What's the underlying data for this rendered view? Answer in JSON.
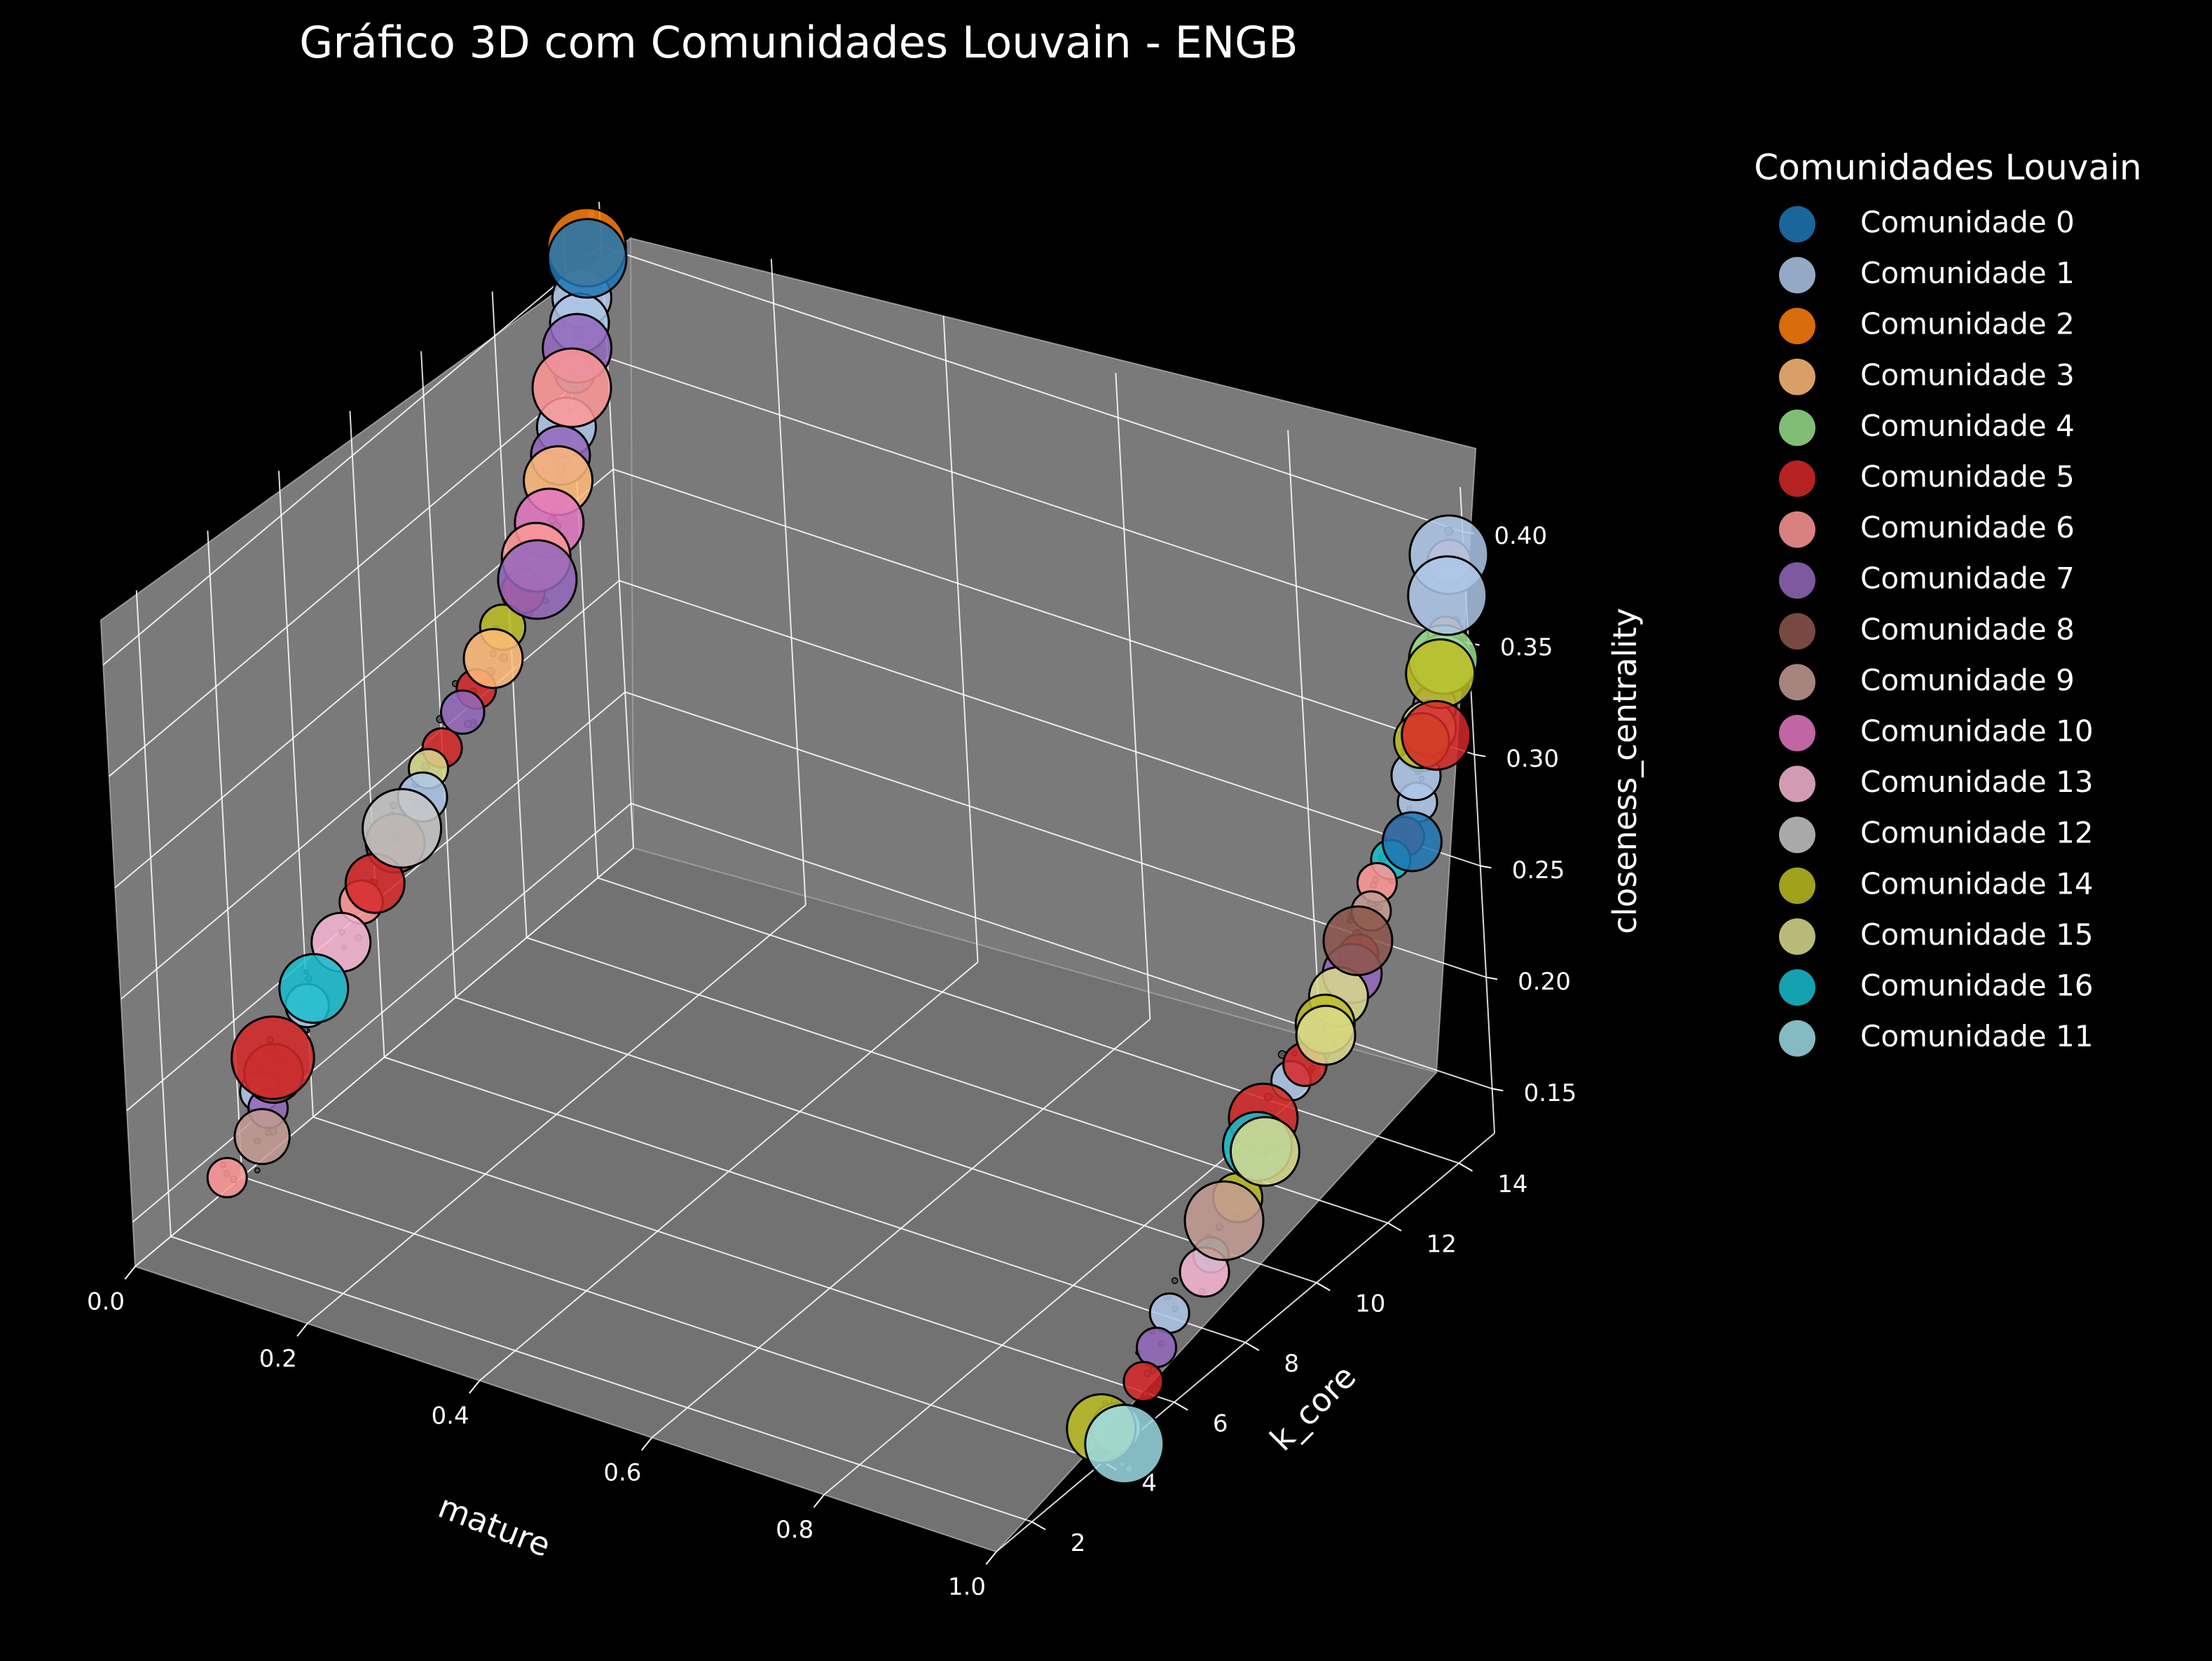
{
  "chart_data": {
    "type": "scatter",
    "projection": "3d",
    "title": "Gráfico 3D com Comunidades Louvain - ENGB",
    "xlabel": "mature",
    "ylabel": "k_core",
    "zlabel": "closeness_centrality",
    "x_ticks": [
      "0.0",
      "0.2",
      "0.4",
      "0.6",
      "0.8",
      "1.0"
    ],
    "y_ticks": [
      "2",
      "4",
      "6",
      "8",
      "10",
      "12",
      "14"
    ],
    "z_ticks": [
      "0.15",
      "0.20",
      "0.25",
      "0.30",
      "0.35",
      "0.40"
    ],
    "xlim": [
      0,
      1
    ],
    "ylim": [
      1,
      15
    ],
    "zlim": [
      0.13,
      0.42
    ],
    "grid": true,
    "background": "#000000",
    "pane_color": "#777777",
    "legend_title": "Comunidades Louvain",
    "legend_placement": "outside-right",
    "legend": [
      {
        "label": "Comunidade 0",
        "color": "#1f77b4"
      },
      {
        "label": "Comunidade 1",
        "color": "#aec7e8"
      },
      {
        "label": "Comunidade 2",
        "color": "#ff7f0e"
      },
      {
        "label": "Comunidade 3",
        "color": "#ffbb78"
      },
      {
        "label": "Comunidade 4",
        "color": "#98df8a"
      },
      {
        "label": "Comunidade 5",
        "color": "#d62728"
      },
      {
        "label": "Comunidade 6",
        "color": "#ff9896"
      },
      {
        "label": "Comunidade 7",
        "color": "#9467bd"
      },
      {
        "label": "Comunidade 8",
        "color": "#8c564b"
      },
      {
        "label": "Comunidade 9",
        "color": "#c49c94"
      },
      {
        "label": "Comunidade 10",
        "color": "#e377c2"
      },
      {
        "label": "Comunidade 13",
        "color": "#f7b6d2"
      },
      {
        "label": "Comunidade 12",
        "color": "#c7c7c7"
      },
      {
        "label": "Comunidade 14",
        "color": "#bcbd22"
      },
      {
        "label": "Comunidade 15",
        "color": "#dbdb8d"
      },
      {
        "label": "Comunidade 16",
        "color": "#17becf"
      },
      {
        "label": "Comunidade 11",
        "color": "#9edae5"
      }
    ],
    "points": [
      {
        "x": 0,
        "y": 14.6,
        "z": 0.405,
        "c": "Comunidade 2",
        "s": 3
      },
      {
        "x": 0,
        "y": 14.6,
        "z": 0.4,
        "c": "Comunidade 0",
        "s": 3
      },
      {
        "x": 0,
        "y": 14.4,
        "z": 0.385,
        "c": "Comunidade 1",
        "s": 2
      },
      {
        "x": 0,
        "y": 14.3,
        "z": 0.375,
        "c": "Comunidade 1",
        "s": 2
      },
      {
        "x": 0,
        "y": 14.2,
        "z": 0.365,
        "c": "Comunidade 7",
        "s": 2.5
      },
      {
        "x": 0,
        "y": 14.1,
        "z": 0.355,
        "c": "Comunidade 0",
        "s": 1
      },
      {
        "x": 0,
        "y": 14.0,
        "z": 0.35,
        "c": "Comunidade 6",
        "s": 3
      },
      {
        "x": 0,
        "y": 13.8,
        "z": 0.335,
        "c": "Comunidade 1",
        "s": 2
      },
      {
        "x": 0,
        "y": 13.6,
        "z": 0.325,
        "c": "Comunidade 7",
        "s": 2
      },
      {
        "x": 0,
        "y": 13.5,
        "z": 0.315,
        "c": "Comunidade 3",
        "s": 2.5
      },
      {
        "x": 0,
        "y": 13.2,
        "z": 0.3,
        "c": "Comunidade 10",
        "s": 2.5
      },
      {
        "x": 0,
        "y": 12.8,
        "z": 0.29,
        "c": "Comunidade 6",
        "s": 2.5
      },
      {
        "x": 0,
        "y": 12.8,
        "z": 0.28,
        "c": "Comunidade 7",
        "s": 3
      },
      {
        "x": 0,
        "y": 12.4,
        "z": 0.28,
        "c": "Comunidade 5",
        "s": 1.2
      },
      {
        "x": 0,
        "y": 11.8,
        "z": 0.272,
        "c": "Comunidade 14",
        "s": 1.3
      },
      {
        "x": 0,
        "y": 11.5,
        "z": 0.262,
        "c": "Comunidade 3",
        "s": 2
      },
      {
        "x": 0,
        "y": 11.0,
        "z": 0.255,
        "c": "Comunidade 5",
        "s": 1
      },
      {
        "x": 0,
        "y": 10.6,
        "z": 0.25,
        "c": "Comunidade 7",
        "s": 1.2
      },
      {
        "x": 0,
        "y": 10.0,
        "z": 0.242,
        "c": "Comunidade 5",
        "s": 1
      },
      {
        "x": 0,
        "y": 9.6,
        "z": 0.238,
        "c": "Comunidade 15",
        "s": 1
      },
      {
        "x": 0,
        "y": 9.4,
        "z": 0.228,
        "c": "Comunidade 1",
        "s": 1.5
      },
      {
        "x": 0,
        "y": 8.8,
        "z": 0.222,
        "c": "Comunidade 12",
        "s": 3
      },
      {
        "x": 0,
        "y": 8.6,
        "z": 0.218,
        "c": "Comunidade 8",
        "s": 2
      },
      {
        "x": 0,
        "y": 8.0,
        "z": 0.208,
        "c": "Comunidade 5",
        "s": 2
      },
      {
        "x": 0,
        "y": 7.6,
        "z": 0.205,
        "c": "Comunidade 6",
        "s": 1.2
      },
      {
        "x": 0,
        "y": 7.0,
        "z": 0.195,
        "c": "Comunidade 13",
        "s": 2
      },
      {
        "x": 0,
        "y": 6.2,
        "z": 0.185,
        "c": "Comunidade 16",
        "s": 2.5
      },
      {
        "x": 0,
        "y": 6.0,
        "z": 0.18,
        "c": "Comunidade 1",
        "s": 1.2
      },
      {
        "x": 0,
        "y": 5.0,
        "z": 0.17,
        "c": "Comunidade 5",
        "s": 3.2
      },
      {
        "x": 0,
        "y": 5.0,
        "z": 0.163,
        "c": "Comunidade 8",
        "s": 2
      },
      {
        "x": 0,
        "y": 4.6,
        "z": 0.16,
        "c": "Comunidade 1",
        "s": 1
      },
      {
        "x": 0,
        "y": 4.8,
        "z": 0.15,
        "c": "Comunidade 7",
        "s": 1
      },
      {
        "x": 0,
        "y": 4.6,
        "z": 0.14,
        "c": "Comunidade 9",
        "s": 1.8
      },
      {
        "x": 0,
        "y": 3.6,
        "z": 0.135,
        "c": "Comunidade 6",
        "s": 1
      },
      {
        "x": 1,
        "y": 14.6,
        "z": 0.395,
        "c": "Comunidade 1",
        "s": 3
      },
      {
        "x": 1,
        "y": 14.6,
        "z": 0.392,
        "c": "Comunidade 6",
        "s": 1.2
      },
      {
        "x": 1,
        "y": 14.5,
        "z": 0.378,
        "c": "Comunidade 1",
        "s": 3
      },
      {
        "x": 1,
        "y": 14.4,
        "z": 0.362,
        "c": "Comunidade 2",
        "s": 0.8
      },
      {
        "x": 1,
        "y": 14.4,
        "z": 0.356,
        "c": "Comunidade 2",
        "s": 0.8
      },
      {
        "x": 1,
        "y": 14.3,
        "z": 0.352,
        "c": "Comunidade 4",
        "s": 2.5
      },
      {
        "x": 1,
        "y": 14.2,
        "z": 0.347,
        "c": "Comunidade 14",
        "s": 2.5
      },
      {
        "x": 1,
        "y": 14.3,
        "z": 0.35,
        "c": "Comunidade 1",
        "s": 2
      },
      {
        "x": 1,
        "y": 14.0,
        "z": 0.335,
        "c": "Comunidade 7",
        "s": 1.2
      },
      {
        "x": 1,
        "y": 13.8,
        "z": 0.328,
        "c": "Comunidade 15",
        "s": 1.8
      },
      {
        "x": 1,
        "y": 14.0,
        "z": 0.322,
        "c": "Comunidade 5",
        "s": 2.5
      },
      {
        "x": 1,
        "y": 13.6,
        "z": 0.325,
        "c": "Comunidade 14",
        "s": 1.8
      },
      {
        "x": 1,
        "y": 13.6,
        "z": 0.32,
        "c": "Comunidade 0",
        "s": 1
      },
      {
        "x": 1,
        "y": 13.4,
        "z": 0.312,
        "c": "Comunidade 1",
        "s": 1.5
      },
      {
        "x": 1,
        "y": 13.4,
        "z": 0.3,
        "c": "Comunidade 1",
        "s": 1
      },
      {
        "x": 1,
        "y": 13.0,
        "z": 0.29,
        "c": "Comunidade 5",
        "s": 1
      },
      {
        "x": 1,
        "y": 13.2,
        "z": 0.285,
        "c": "Comunidade 0",
        "s": 2
      },
      {
        "x": 1,
        "y": 12.6,
        "z": 0.285,
        "c": "Comunidade 16",
        "s": 1
      },
      {
        "x": 1,
        "y": 12.2,
        "z": 0.28,
        "c": "Comunidade 6",
        "s": 1
      },
      {
        "x": 1,
        "y": 12.0,
        "z": 0.27,
        "c": "Comunidade 9",
        "s": 1
      },
      {
        "x": 1,
        "y": 11.6,
        "z": 0.262,
        "c": "Comunidade 8",
        "s": 2.5
      },
      {
        "x": 1,
        "y": 11.6,
        "z": 0.256,
        "c": "Comunidade 5",
        "s": 1
      },
      {
        "x": 1,
        "y": 11.4,
        "z": 0.25,
        "c": "Comunidade 7",
        "s": 2
      },
      {
        "x": 1,
        "y": 11.0,
        "z": 0.245,
        "c": "Comunidade 15",
        "s": 2
      },
      {
        "x": 1,
        "y": 10.6,
        "z": 0.238,
        "c": "Comunidade 14",
        "s": 2
      },
      {
        "x": 1,
        "y": 10.6,
        "z": 0.233,
        "c": "Comunidade 15",
        "s": 2
      },
      {
        "x": 1,
        "y": 10.0,
        "z": 0.228,
        "c": "Comunidade 5",
        "s": 1.2
      },
      {
        "x": 1,
        "y": 9.6,
        "z": 0.226,
        "c": "Comunidade 1",
        "s": 1
      },
      {
        "x": 1,
        "y": 8.8,
        "z": 0.22,
        "c": "Comunidade 5",
        "s": 2.5
      },
      {
        "x": 1,
        "y": 8.6,
        "z": 0.21,
        "c": "Comunidade 16",
        "s": 2.5
      },
      {
        "x": 1,
        "y": 8.8,
        "z": 0.205,
        "c": "Comunidade 15",
        "s": 2.5
      },
      {
        "x": 1,
        "y": 8.0,
        "z": 0.195,
        "c": "Comunidade 14",
        "s": 1.5
      },
      {
        "x": 1,
        "y": 7.6,
        "z": 0.19,
        "c": "Comunidade 9",
        "s": 3
      },
      {
        "x": 1,
        "y": 7.2,
        "z": 0.18,
        "c": "Comunidade 16",
        "s": 0.8
      },
      {
        "x": 1,
        "y": 7.0,
        "z": 0.175,
        "c": "Comunidade 13",
        "s": 1.5
      },
      {
        "x": 1,
        "y": 6.0,
        "z": 0.17,
        "c": "Comunidade 1",
        "s": 1
      },
      {
        "x": 1,
        "y": 5.6,
        "z": 0.16,
        "c": "Comunidade 7",
        "s": 1
      },
      {
        "x": 1,
        "y": 5.2,
        "z": 0.15,
        "c": "Comunidade 5",
        "s": 1
      },
      {
        "x": 1,
        "y": 4.0,
        "z": 0.145,
        "c": "Comunidade 14",
        "s": 2.5
      },
      {
        "x": 1,
        "y": 4.4,
        "z": 0.14,
        "c": "Comunidade 11",
        "s": 1.5
      },
      {
        "x": 1,
        "y": 4.6,
        "z": 0.13,
        "c": "Comunidade 11",
        "s": 3
      }
    ]
  }
}
